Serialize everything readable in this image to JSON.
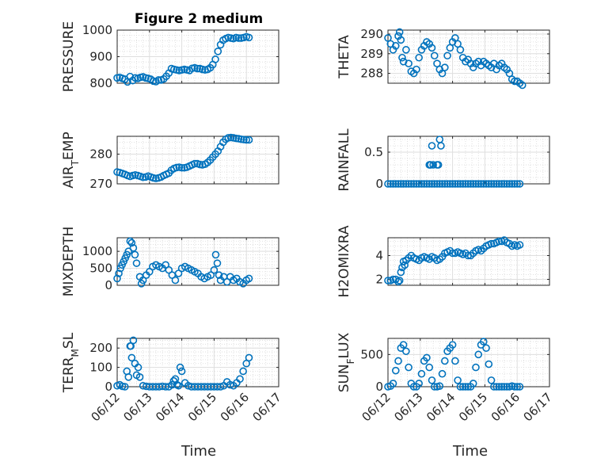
{
  "figure": {
    "title": "Figure 2 medium",
    "xlabel": "Time",
    "series_color": "#0072BD",
    "x_ticks": [
      "06/12",
      "06/13",
      "06/14",
      "06/15",
      "06/16",
      "06/17"
    ]
  },
  "chart_data": [
    {
      "type": "scatter",
      "ylabel": "PRESSURE",
      "xlim": [
        0,
        5
      ],
      "ylim": [
        800,
        1000
      ],
      "yticks": [
        800,
        900,
        1000
      ],
      "title": "Figure 2 medium",
      "grid": true,
      "x": [
        0.0,
        0.08,
        0.16,
        0.24,
        0.32,
        0.4,
        0.48,
        0.56,
        0.64,
        0.72,
        0.8,
        0.88,
        0.96,
        1.04,
        1.12,
        1.2,
        1.28,
        1.36,
        1.44,
        1.52,
        1.6,
        1.68,
        1.76,
        1.84,
        1.92,
        2.0,
        2.08,
        2.16,
        2.24,
        2.32,
        2.4,
        2.48,
        2.56,
        2.64,
        2.72,
        2.8,
        2.88,
        2.96,
        3.04,
        3.12,
        3.2,
        3.28,
        3.36,
        3.44,
        3.52,
        3.6,
        3.68,
        3.76,
        3.84,
        3.92,
        4.0,
        4.08
      ],
      "y": [
        820,
        822,
        818,
        815,
        805,
        825,
        810,
        820,
        818,
        822,
        824,
        820,
        818,
        815,
        808,
        806,
        812,
        812,
        816,
        826,
        838,
        855,
        852,
        850,
        848,
        850,
        852,
        850,
        848,
        856,
        858,
        855,
        855,
        852,
        850,
        852,
        858,
        870,
        890,
        920,
        945,
        962,
        968,
        972,
        970,
        968,
        972,
        970,
        970,
        972,
        975,
        972
      ]
    },
    {
      "type": "scatter",
      "ylabel": "THETA",
      "xlim": [
        0,
        5
      ],
      "ylim": [
        287.5,
        290.2
      ],
      "yticks": [
        288,
        289,
        290
      ],
      "grid": true,
      "x": [
        0.0,
        0.08,
        0.16,
        0.24,
        0.32,
        0.36,
        0.4,
        0.44,
        0.48,
        0.56,
        0.64,
        0.72,
        0.8,
        0.88,
        0.96,
        1.04,
        1.12,
        1.2,
        1.28,
        1.36,
        1.44,
        1.52,
        1.6,
        1.68,
        1.76,
        1.84,
        1.92,
        2.0,
        2.08,
        2.16,
        2.24,
        2.32,
        2.4,
        2.48,
        2.56,
        2.64,
        2.72,
        2.8,
        2.88,
        2.96,
        3.04,
        3.12,
        3.2,
        3.28,
        3.36,
        3.44,
        3.52,
        3.6,
        3.68,
        3.76,
        3.84,
        3.92,
        4.0,
        4.08,
        4.16
      ],
      "y": [
        289.8,
        289.5,
        289.2,
        289.4,
        289.9,
        290.1,
        289.7,
        288.8,
        288.6,
        289.2,
        288.5,
        288.1,
        288.0,
        288.2,
        288.8,
        289.2,
        289.4,
        289.6,
        289.5,
        289.3,
        288.9,
        288.5,
        288.2,
        288.0,
        288.3,
        288.9,
        289.3,
        289.6,
        289.8,
        289.5,
        289.2,
        288.8,
        288.6,
        288.7,
        288.5,
        288.3,
        288.5,
        288.6,
        288.4,
        288.6,
        288.5,
        288.4,
        288.3,
        288.5,
        288.2,
        288.4,
        288.5,
        288.3,
        288.2,
        288.0,
        287.7,
        287.6,
        287.6,
        287.5,
        287.4
      ]
    },
    {
      "type": "scatter",
      "ylabel": "AIR_TEMP",
      "xlim": [
        0,
        5
      ],
      "ylim": [
        270,
        286
      ],
      "yticks": [
        270,
        280
      ],
      "grid": true,
      "x": [
        0.0,
        0.08,
        0.16,
        0.24,
        0.32,
        0.4,
        0.48,
        0.56,
        0.64,
        0.72,
        0.8,
        0.88,
        0.96,
        1.04,
        1.12,
        1.2,
        1.28,
        1.36,
        1.44,
        1.52,
        1.6,
        1.68,
        1.76,
        1.84,
        1.92,
        2.0,
        2.08,
        2.16,
        2.24,
        2.32,
        2.4,
        2.48,
        2.56,
        2.64,
        2.72,
        2.8,
        2.88,
        2.96,
        3.04,
        3.12,
        3.2,
        3.28,
        3.36,
        3.44,
        3.52,
        3.6,
        3.68,
        3.76,
        3.84,
        3.92,
        4.0,
        4.08
      ],
      "y": [
        274,
        273.8,
        273.5,
        273.2,
        272.8,
        272.5,
        272.8,
        273,
        272.8,
        272.5,
        272.2,
        272.3,
        272.6,
        272.3,
        272.0,
        271.8,
        272.0,
        272.3,
        272.8,
        273.2,
        273.6,
        274.6,
        275.2,
        275.5,
        275.6,
        275.4,
        275.4,
        275.6,
        276.0,
        276.4,
        276.8,
        276.8,
        276.5,
        276.4,
        276.6,
        277.2,
        278,
        279,
        280,
        281,
        282.5,
        284,
        285,
        285.5,
        285.6,
        285.5,
        285.3,
        285.2,
        285.0,
        284.9,
        284.8,
        284.8
      ]
    },
    {
      "type": "scatter",
      "ylabel": "RAINFALL",
      "xlim": [
        0,
        5
      ],
      "ylim": [
        0,
        0.75
      ],
      "yticks": [
        0,
        0.5
      ],
      "grid": true,
      "x": [
        0.0,
        0.08,
        0.16,
        0.24,
        0.32,
        0.4,
        0.48,
        0.56,
        0.64,
        0.72,
        0.8,
        0.88,
        0.96,
        1.04,
        1.12,
        1.2,
        1.28,
        1.36,
        1.44,
        1.52,
        1.6,
        1.68,
        1.76,
        1.84,
        1.92,
        2.0,
        2.08,
        2.16,
        2.24,
        2.32,
        2.4,
        2.48,
        2.56,
        2.64,
        2.72,
        2.8,
        2.88,
        2.96,
        3.04,
        3.12,
        3.2,
        3.28,
        3.36,
        3.44,
        3.52,
        3.6,
        3.68,
        3.76,
        3.84,
        3.92,
        4.0,
        4.08,
        1.28,
        1.3,
        1.32,
        1.36,
        1.4,
        1.52,
        1.56,
        1.6,
        1.64
      ],
      "y": [
        0,
        0,
        0,
        0,
        0,
        0,
        0,
        0,
        0,
        0,
        0,
        0,
        0,
        0,
        0,
        0,
        0,
        0,
        0,
        0,
        0,
        0,
        0,
        0,
        0,
        0,
        0,
        0,
        0,
        0,
        0,
        0,
        0,
        0,
        0,
        0,
        0,
        0,
        0,
        0,
        0,
        0,
        0,
        0,
        0,
        0,
        0,
        0,
        0,
        0,
        0,
        0,
        0.3,
        0.3,
        0.3,
        0.6,
        0.3,
        0.3,
        0.3,
        0.7,
        0.6
      ]
    },
    {
      "type": "scatter",
      "ylabel": "MIXDEPTH",
      "xlim": [
        0,
        5
      ],
      "ylim": [
        0,
        1400
      ],
      "yticks": [
        0,
        500,
        1000
      ],
      "grid": true,
      "x": [
        0.0,
        0.05,
        0.1,
        0.15,
        0.2,
        0.25,
        0.3,
        0.35,
        0.4,
        0.45,
        0.5,
        0.55,
        0.6,
        0.7,
        0.75,
        0.8,
        0.9,
        1.0,
        1.1,
        1.2,
        1.3,
        1.4,
        1.5,
        1.6,
        1.7,
        1.8,
        1.9,
        2.0,
        2.1,
        2.2,
        2.3,
        2.4,
        2.5,
        2.6,
        2.7,
        2.8,
        2.9,
        3.0,
        3.05,
        3.1,
        3.15,
        3.2,
        3.3,
        3.4,
        3.5,
        3.6,
        3.7,
        3.8,
        3.9,
        4.0,
        4.08
      ],
      "y": [
        200,
        350,
        500,
        600,
        700,
        800,
        900,
        1000,
        1300,
        1250,
        1100,
        900,
        650,
        250,
        50,
        150,
        300,
        400,
        550,
        600,
        550,
        500,
        600,
        450,
        300,
        150,
        350,
        500,
        550,
        500,
        450,
        400,
        350,
        250,
        200,
        250,
        300,
        450,
        900,
        650,
        300,
        150,
        250,
        100,
        250,
        150,
        200,
        100,
        50,
        150,
        200
      ]
    },
    {
      "type": "scatter",
      "ylabel": "H2OMIXRA",
      "xlim": [
        0,
        5
      ],
      "ylim": [
        1.5,
        5.5
      ],
      "yticks": [
        2,
        4
      ],
      "grid": true,
      "x": [
        0.0,
        0.08,
        0.16,
        0.24,
        0.32,
        0.36,
        0.4,
        0.44,
        0.48,
        0.52,
        0.56,
        0.64,
        0.72,
        0.8,
        0.88,
        0.96,
        1.04,
        1.12,
        1.2,
        1.28,
        1.36,
        1.44,
        1.52,
        1.6,
        1.68,
        1.76,
        1.84,
        1.92,
        2.0,
        2.08,
        2.16,
        2.24,
        2.32,
        2.4,
        2.48,
        2.56,
        2.64,
        2.72,
        2.8,
        2.88,
        2.96,
        3.04,
        3.12,
        3.2,
        3.28,
        3.36,
        3.44,
        3.52,
        3.6,
        3.68,
        3.76,
        3.84,
        3.92,
        4.0,
        4.08
      ],
      "y": [
        1.9,
        1.9,
        2.0,
        2.0,
        1.8,
        1.9,
        2.6,
        3.0,
        3.5,
        3.2,
        3.6,
        3.8,
        4.0,
        3.8,
        3.7,
        3.6,
        3.8,
        3.9,
        3.8,
        3.7,
        3.9,
        3.8,
        3.6,
        3.7,
        3.9,
        4.2,
        4.3,
        4.4,
        4.2,
        4.2,
        4.3,
        4.2,
        4.1,
        4.2,
        4.0,
        4.0,
        4.2,
        4.4,
        4.5,
        4.4,
        4.6,
        4.8,
        4.9,
        5.0,
        5.0,
        5.1,
        5.2,
        5.2,
        5.3,
        5.1,
        5.0,
        4.8,
        4.9,
        4.8,
        4.9
      ]
    },
    {
      "type": "scatter",
      "ylabel": "TERR_MSL",
      "xlim": [
        0,
        5
      ],
      "ylim": [
        0,
        250
      ],
      "yticks": [
        0,
        100,
        200
      ],
      "grid": true,
      "x": [
        0.0,
        0.08,
        0.16,
        0.24,
        0.3,
        0.35,
        0.4,
        0.42,
        0.45,
        0.5,
        0.55,
        0.6,
        0.65,
        0.7,
        0.8,
        0.9,
        1.0,
        1.1,
        1.2,
        1.3,
        1.4,
        1.5,
        1.6,
        1.7,
        1.75,
        1.8,
        1.85,
        1.9,
        1.95,
        2.0,
        2.1,
        2.2,
        2.3,
        2.4,
        2.5,
        2.6,
        2.7,
        2.8,
        2.9,
        3.0,
        3.1,
        3.2,
        3.3,
        3.4,
        3.5,
        3.6,
        3.7,
        3.8,
        3.9,
        4.0,
        4.08
      ],
      "y": [
        5,
        10,
        2,
        0,
        80,
        50,
        210,
        210,
        150,
        240,
        120,
        60,
        100,
        50,
        5,
        2,
        0,
        0,
        0,
        0,
        2,
        0,
        0,
        10,
        30,
        40,
        10,
        5,
        100,
        80,
        20,
        5,
        0,
        0,
        0,
        0,
        0,
        0,
        0,
        0,
        0,
        0,
        5,
        25,
        10,
        5,
        20,
        40,
        80,
        120,
        150
      ]
    },
    {
      "type": "scatter",
      "ylabel": "SUN_FLUX",
      "xlim": [
        0,
        5
      ],
      "ylim": [
        0,
        750
      ],
      "yticks": [
        0,
        500
      ],
      "grid": true,
      "x": [
        0.0,
        0.08,
        0.16,
        0.24,
        0.32,
        0.4,
        0.48,
        0.56,
        0.64,
        0.72,
        0.8,
        0.88,
        0.96,
        1.04,
        1.12,
        1.2,
        1.28,
        1.36,
        1.44,
        1.52,
        1.6,
        1.68,
        1.76,
        1.84,
        1.92,
        2.0,
        2.08,
        2.16,
        2.24,
        2.32,
        2.4,
        2.48,
        2.56,
        2.64,
        2.72,
        2.8,
        2.88,
        2.96,
        3.04,
        3.12,
        3.2,
        3.28,
        3.36,
        3.44,
        3.52,
        3.6,
        3.68,
        3.76,
        3.84,
        3.92,
        4.0,
        4.08
      ],
      "y": [
        0,
        10,
        50,
        250,
        400,
        600,
        650,
        550,
        300,
        50,
        0,
        0,
        50,
        200,
        400,
        450,
        300,
        100,
        0,
        0,
        10,
        200,
        400,
        550,
        600,
        650,
        400,
        100,
        0,
        0,
        0,
        0,
        0,
        50,
        300,
        500,
        650,
        700,
        600,
        350,
        100,
        0,
        0,
        0,
        0,
        0,
        0,
        0,
        10,
        0,
        0,
        0
      ]
    }
  ]
}
